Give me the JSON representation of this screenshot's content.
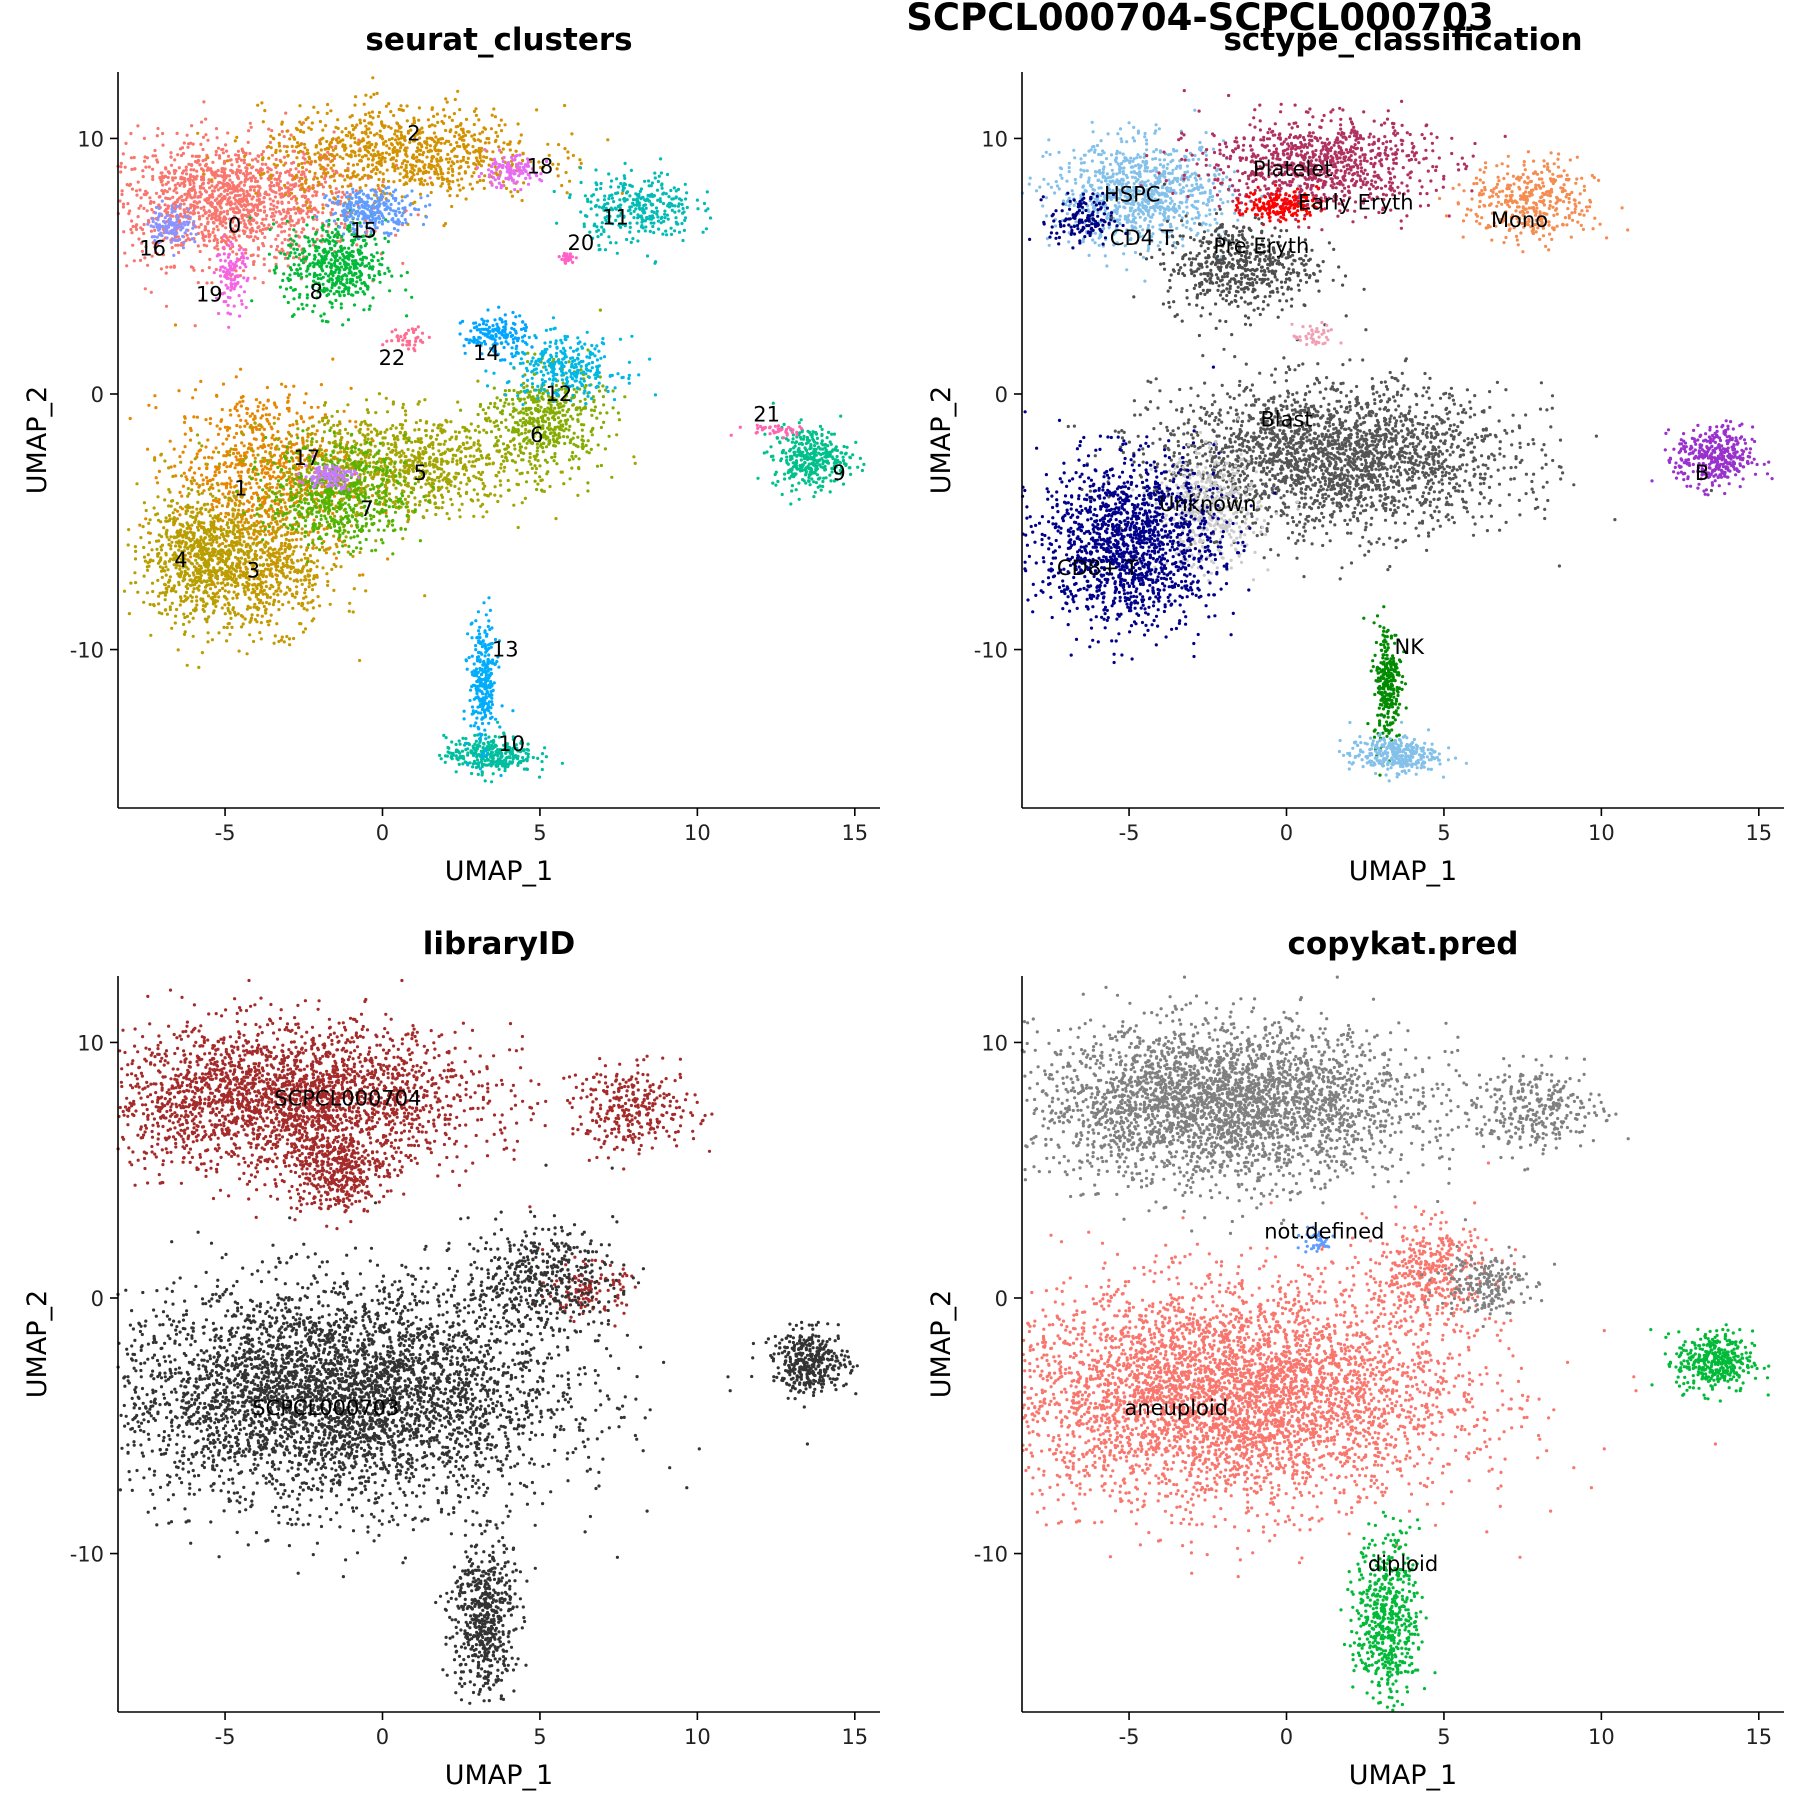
{
  "figure_title": "SCPCL000704-SCPCL000703",
  "chart_data": [
    {
      "type": "scatter",
      "title": "seurat_clusters",
      "xlabel": "UMAP_1",
      "ylabel": "UMAP_2",
      "xlim": [
        -8.4,
        15.8
      ],
      "ylim": [
        -16.2,
        12.6
      ],
      "xticks": [
        -5,
        0,
        5,
        10,
        15
      ],
      "yticks": [
        -10,
        0,
        10
      ],
      "xtick_labels": [
        "-5",
        "0",
        "5",
        "10",
        "15"
      ],
      "ytick_labels": [
        "-10",
        "0",
        "10"
      ],
      "legend": "none",
      "groups": [
        {
          "name": "0",
          "color": "#F8766D",
          "x": -4.8,
          "y": 7.5,
          "sx": 2.0,
          "sy": 1.2,
          "n": 1400,
          "lx": -4.7,
          "ly": 6.6
        },
        {
          "name": "1",
          "color": "#E58700",
          "x": -3.8,
          "y": -3.0,
          "sx": 1.4,
          "sy": 1.6,
          "n": 800,
          "lx": -4.5,
          "ly": -3.7
        },
        {
          "name": "2",
          "color": "#D39200",
          "x": 0.6,
          "y": 9.4,
          "sx": 2.2,
          "sy": 0.9,
          "n": 900,
          "lx": 1.0,
          "ly": 10.2
        },
        {
          "name": "3",
          "color": "#C49A00",
          "x": -3.8,
          "y": -6.8,
          "sx": 1.2,
          "sy": 1.2,
          "n": 700,
          "lx": -4.1,
          "ly": -6.9
        },
        {
          "name": "4",
          "color": "#B79F00",
          "x": -5.9,
          "y": -6.3,
          "sx": 0.9,
          "sy": 1.3,
          "n": 700,
          "lx": -6.4,
          "ly": -6.5
        },
        {
          "name": "5",
          "color": "#A3A500",
          "x": 0.5,
          "y": -2.8,
          "sx": 2.1,
          "sy": 1.0,
          "n": 1000,
          "lx": 1.2,
          "ly": -3.1
        },
        {
          "name": "6",
          "color": "#85AD00",
          "x": 5.2,
          "y": -1.0,
          "sx": 0.9,
          "sy": 1.0,
          "n": 500,
          "lx": 4.9,
          "ly": -1.6
        },
        {
          "name": "7",
          "color": "#53B400",
          "x": -1.4,
          "y": -4.0,
          "sx": 1.1,
          "sy": 1.0,
          "n": 550,
          "lx": -0.5,
          "ly": -4.5
        },
        {
          "name": "8",
          "color": "#00BA38",
          "x": -1.5,
          "y": 5.0,
          "sx": 0.8,
          "sy": 0.9,
          "n": 500,
          "lx": -2.1,
          "ly": 4.0
        },
        {
          "name": "9",
          "color": "#00C08B",
          "x": 13.6,
          "y": -2.5,
          "sx": 0.6,
          "sy": 0.6,
          "n": 350,
          "lx": 14.5,
          "ly": -3.1
        },
        {
          "name": "10",
          "color": "#00BF9F",
          "x": 3.4,
          "y": -14.1,
          "sx": 0.7,
          "sy": 0.35,
          "n": 320,
          "lx": 4.1,
          "ly": -13.7
        },
        {
          "name": "11",
          "color": "#00BCB4",
          "x": 8.1,
          "y": 7.3,
          "sx": 0.9,
          "sy": 0.7,
          "n": 320,
          "lx": 7.4,
          "ly": 6.9
        },
        {
          "name": "12",
          "color": "#00B8E5",
          "x": 5.8,
          "y": 1.0,
          "sx": 0.9,
          "sy": 0.6,
          "n": 300,
          "lx": 5.6,
          "ly": 0.0
        },
        {
          "name": "13",
          "color": "#00ADFA",
          "x": 3.2,
          "y": -11.3,
          "sx": 0.22,
          "sy": 1.2,
          "n": 280,
          "lx": 3.9,
          "ly": -10.0
        },
        {
          "name": "14",
          "color": "#00A5FF",
          "x": 3.6,
          "y": 2.3,
          "sx": 0.5,
          "sy": 0.4,
          "n": 160,
          "lx": 3.3,
          "ly": 1.6
        },
        {
          "name": "15",
          "color": "#619CFF",
          "x": -0.3,
          "y": 7.2,
          "sx": 0.7,
          "sy": 0.4,
          "n": 260,
          "lx": -0.6,
          "ly": 6.4
        },
        {
          "name": "16",
          "color": "#8B93FF",
          "x": -6.7,
          "y": 6.6,
          "sx": 0.35,
          "sy": 0.4,
          "n": 120,
          "lx": -7.3,
          "ly": 5.7
        },
        {
          "name": "17",
          "color": "#C77CFF",
          "x": -1.7,
          "y": -3.2,
          "sx": 0.4,
          "sy": 0.25,
          "n": 110,
          "lx": -2.4,
          "ly": -2.5
        },
        {
          "name": "18",
          "color": "#E76BF3",
          "x": 4.0,
          "y": 8.7,
          "sx": 0.5,
          "sy": 0.3,
          "n": 120,
          "lx": 5.0,
          "ly": 8.9
        },
        {
          "name": "19",
          "color": "#F564E3",
          "x": -4.8,
          "y": 4.6,
          "sx": 0.25,
          "sy": 0.6,
          "n": 110,
          "lx": -5.5,
          "ly": 3.9
        },
        {
          "name": "20",
          "color": "#FF61C9",
          "x": 5.9,
          "y": 5.3,
          "sx": 0.12,
          "sy": 0.1,
          "n": 30,
          "lx": 6.3,
          "ly": 5.9
        },
        {
          "name": "21",
          "color": "#FF64B0",
          "x": 12.5,
          "y": -1.4,
          "sx": 0.6,
          "sy": 0.12,
          "n": 40,
          "lx": 12.2,
          "ly": -0.8
        },
        {
          "name": "22",
          "color": "#FF6C91",
          "x": 0.9,
          "y": 2.2,
          "sx": 0.35,
          "sy": 0.25,
          "n": 40,
          "lx": 0.3,
          "ly": 1.4
        }
      ]
    },
    {
      "type": "scatter",
      "title": "sctype_classification",
      "xlabel": "UMAP_1",
      "ylabel": "UMAP_2",
      "xlim": [
        -8.4,
        15.8
      ],
      "ylim": [
        -16.2,
        12.6
      ],
      "xticks": [
        -5,
        0,
        5,
        10,
        15
      ],
      "yticks": [
        -10,
        0,
        10
      ],
      "xtick_labels": [
        "-5",
        "0",
        "5",
        "10",
        "15"
      ],
      "ytick_labels": [
        "-10",
        "0",
        "10"
      ],
      "legend": "none",
      "groups": [
        {
          "name": "HSPC",
          "color": "#84C1EA",
          "x": -4.6,
          "y": 7.8,
          "sx": 1.4,
          "sy": 1.0,
          "n": 900,
          "lx": -4.9,
          "ly": 7.8
        },
        {
          "name": "Platelet",
          "color": "#B03060",
          "x": 1.0,
          "y": 9.0,
          "sx": 1.8,
          "sy": 0.9,
          "n": 900,
          "lx": 0.2,
          "ly": 8.8
        },
        {
          "name": "Early Eryth",
          "color": "#FF0000",
          "x": -0.2,
          "y": 7.4,
          "sx": 0.6,
          "sy": 0.3,
          "n": 180,
          "lx": 2.2,
          "ly": 7.5
        },
        {
          "name": "Mono",
          "color": "#F58C50",
          "x": 7.8,
          "y": 7.5,
          "sx": 1.0,
          "sy": 0.8,
          "n": 380,
          "lx": 7.4,
          "ly": 6.8
        },
        {
          "name": "CD4 T",
          "color": "#000080",
          "x": -6.5,
          "y": 6.8,
          "sx": 0.5,
          "sy": 0.5,
          "n": 150,
          "lx": -4.6,
          "ly": 6.1
        },
        {
          "name": "Pre Eryth",
          "color": "#4D4D4D",
          "x": -1.5,
          "y": 5.0,
          "sx": 1.2,
          "sy": 0.9,
          "n": 550,
          "lx": -0.8,
          "ly": 5.8
        },
        {
          "name": "Blast",
          "color": "#555555",
          "x": 1.5,
          "y": -2.5,
          "sx": 2.8,
          "sy": 1.4,
          "n": 2400,
          "lx": 0.0,
          "ly": -1.0
        },
        {
          "name": "Unknown",
          "color": "#CCCCCC",
          "x": -2.5,
          "y": -4.6,
          "sx": 0.8,
          "sy": 1.1,
          "n": 450,
          "lx": -2.5,
          "ly": -4.3
        },
        {
          "name": "CD8+ T",
          "color": "#00008B",
          "x": -5.0,
          "y": -5.8,
          "sx": 1.4,
          "sy": 1.6,
          "n": 1500,
          "lx": -6.0,
          "ly": -6.8
        },
        {
          "name": "B",
          "color": "#9932CC",
          "x": 13.6,
          "y": -2.5,
          "sx": 0.6,
          "sy": 0.6,
          "n": 380,
          "lx": 13.2,
          "ly": -3.1
        },
        {
          "name": "NK",
          "color": "#008B00",
          "x": 3.2,
          "y": -11.3,
          "sx": 0.22,
          "sy": 1.2,
          "n": 280,
          "lx": 3.9,
          "ly": -9.9
        },
        {
          "name": "",
          "color": "#84C1EA",
          "x": 3.4,
          "y": -14.1,
          "sx": 0.7,
          "sy": 0.35,
          "n": 320,
          "lx": null,
          "ly": null
        },
        {
          "name": "",
          "color": "#F0A0B4",
          "x": 0.9,
          "y": 2.2,
          "sx": 0.35,
          "sy": 0.25,
          "n": 40,
          "lx": null,
          "ly": null
        }
      ]
    },
    {
      "type": "scatter",
      "title": "libraryID",
      "xlabel": "UMAP_1",
      "ylabel": "UMAP_2",
      "xlim": [
        -8.4,
        15.8
      ],
      "ylim": [
        -16.2,
        12.6
      ],
      "xticks": [
        -5,
        0,
        5,
        10,
        15
      ],
      "yticks": [
        -10,
        0,
        10
      ],
      "xtick_labels": [
        "-5",
        "0",
        "5",
        "10",
        "15"
      ],
      "ytick_labels": [
        "-10",
        "0",
        "10"
      ],
      "legend": "none",
      "groups": [
        {
          "name": "SCPCL000704",
          "color": "#A52A2A",
          "x": -3.0,
          "y": 7.8,
          "sx": 3.0,
          "sy": 1.4,
          "n": 2600,
          "lx": -1.1,
          "ly": 7.8
        },
        {
          "name": "",
          "color": "#A52A2A",
          "x": 8.0,
          "y": 7.4,
          "sx": 1.0,
          "sy": 0.8,
          "n": 300,
          "lx": null,
          "ly": null
        },
        {
          "name": "",
          "color": "#A52A2A",
          "x": -1.5,
          "y": 5.0,
          "sx": 0.8,
          "sy": 0.8,
          "n": 400,
          "lx": null,
          "ly": null
        },
        {
          "name": "",
          "color": "#A52A2A",
          "x": 6.5,
          "y": 0.3,
          "sx": 0.6,
          "sy": 0.5,
          "n": 120,
          "lx": null,
          "ly": null
        },
        {
          "name": "SCPCL000703",
          "color": "#333333",
          "x": -1.5,
          "y": -3.8,
          "sx": 3.5,
          "sy": 2.1,
          "n": 4400,
          "lx": -1.8,
          "ly": -4.3
        },
        {
          "name": "",
          "color": "#333333",
          "x": 13.6,
          "y": -2.5,
          "sx": 0.6,
          "sy": 0.6,
          "n": 380,
          "lx": null,
          "ly": null
        },
        {
          "name": "",
          "color": "#333333",
          "x": 3.2,
          "y": -12.5,
          "sx": 0.5,
          "sy": 1.6,
          "n": 580,
          "lx": null,
          "ly": null
        },
        {
          "name": "",
          "color": "#333333",
          "x": 5.0,
          "y": 0.8,
          "sx": 1.2,
          "sy": 1.0,
          "n": 450,
          "lx": null,
          "ly": null
        }
      ]
    },
    {
      "type": "scatter",
      "title": "copykat.pred",
      "xlabel": "UMAP_1",
      "ylabel": "UMAP_2",
      "xlim": [
        -8.4,
        15.8
      ],
      "ylim": [
        -16.2,
        12.6
      ],
      "xticks": [
        -5,
        0,
        5,
        10,
        15
      ],
      "yticks": [
        -10,
        0,
        10
      ],
      "xtick_labels": [
        "-5",
        "0",
        "5",
        "10",
        "15"
      ],
      "ytick_labels": [
        "-10",
        "0",
        "10"
      ],
      "legend": "none",
      "groups": [
        {
          "name": "aneuploid",
          "color": "#F8766D",
          "x": -1.8,
          "y": -3.8,
          "sx": 3.6,
          "sy": 2.1,
          "n": 4600,
          "lx": -3.5,
          "ly": -4.3
        },
        {
          "name": "",
          "color": "#F8766D",
          "x": 4.5,
          "y": 1.0,
          "sx": 1.0,
          "sy": 1.0,
          "n": 400,
          "lx": null,
          "ly": null
        },
        {
          "name": "diploid",
          "color": "#00BA38",
          "x": 3.2,
          "y": -12.5,
          "sx": 0.5,
          "sy": 1.6,
          "n": 560,
          "lx": 3.7,
          "ly": -10.4
        },
        {
          "name": "",
          "color": "#00BA38",
          "x": 13.6,
          "y": -2.5,
          "sx": 0.6,
          "sy": 0.6,
          "n": 380,
          "lx": null,
          "ly": null
        },
        {
          "name": "",
          "color": "#808080",
          "x": -2.0,
          "y": 7.6,
          "sx": 3.0,
          "sy": 1.5,
          "n": 3200,
          "lx": null,
          "ly": null
        },
        {
          "name": "",
          "color": "#808080",
          "x": 8.0,
          "y": 7.4,
          "sx": 1.0,
          "sy": 0.8,
          "n": 300,
          "lx": null,
          "ly": null
        },
        {
          "name": "",
          "color": "#808080",
          "x": 6.2,
          "y": 0.6,
          "sx": 0.7,
          "sy": 0.6,
          "n": 200,
          "lx": null,
          "ly": null
        },
        {
          "name": "not.defined",
          "color": "#619CFF",
          "x": 0.9,
          "y": 2.2,
          "sx": 0.35,
          "sy": 0.25,
          "n": 40,
          "lx": 1.2,
          "ly": 2.6
        }
      ]
    }
  ]
}
